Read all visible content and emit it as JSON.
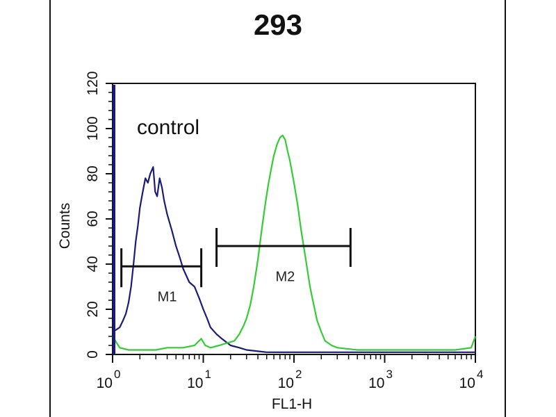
{
  "chart_data": {
    "type": "line",
    "title": "293",
    "xlabel": "FL1-H",
    "ylabel": "Counts",
    "x_scale": "log",
    "xlim": [
      1,
      10000
    ],
    "ylim": [
      0,
      120
    ],
    "x_ticks": [
      {
        "value": 1,
        "base": "10",
        "exp": "0"
      },
      {
        "value": 10,
        "base": "10",
        "exp": "1"
      },
      {
        "value": 100,
        "base": "10",
        "exp": "2"
      },
      {
        "value": 1000,
        "base": "10",
        "exp": "3"
      },
      {
        "value": 10000,
        "base": "10",
        "exp": "4"
      }
    ],
    "y_ticks": [
      "0",
      "20",
      "40",
      "60",
      "80",
      "100",
      "120"
    ],
    "grid": false,
    "annotation": "control",
    "series": [
      {
        "color": "#1a1a7a",
        "points": [
          [
            1,
            10
          ],
          [
            1.1,
            11
          ],
          [
            1.2,
            12
          ],
          [
            1.3,
            15
          ],
          [
            1.4,
            18
          ],
          [
            1.5,
            23
          ],
          [
            1.6,
            30
          ],
          [
            1.7,
            40
          ],
          [
            1.8,
            50
          ],
          [
            1.9,
            57
          ],
          [
            2.0,
            65
          ],
          [
            2.15,
            72
          ],
          [
            2.3,
            78
          ],
          [
            2.45,
            76
          ],
          [
            2.6,
            80
          ],
          [
            2.8,
            83
          ],
          [
            2.95,
            72
          ],
          [
            3.1,
            70
          ],
          [
            3.3,
            78
          ],
          [
            3.5,
            74
          ],
          [
            3.7,
            68
          ],
          [
            4,
            62
          ],
          [
            4.5,
            55
          ],
          [
            5,
            48
          ],
          [
            5.5,
            43
          ],
          [
            6,
            38
          ],
          [
            7,
            32
          ],
          [
            8,
            30
          ],
          [
            9,
            25
          ],
          [
            10,
            20
          ],
          [
            11,
            16
          ],
          [
            12,
            12
          ],
          [
            14,
            9
          ],
          [
            16,
            7
          ],
          [
            20,
            4
          ],
          [
            25,
            3
          ],
          [
            30,
            2
          ],
          [
            50,
            1
          ],
          [
            100,
            1
          ],
          [
            300,
            1
          ],
          [
            1000,
            1
          ],
          [
            3000,
            1
          ],
          [
            10000,
            1
          ]
        ]
      },
      {
        "color": "#33cc33",
        "points": [
          [
            1,
            8
          ],
          [
            1.2,
            3
          ],
          [
            1.5,
            2
          ],
          [
            2,
            2
          ],
          [
            3,
            2
          ],
          [
            4,
            3
          ],
          [
            6,
            3
          ],
          [
            8,
            4
          ],
          [
            9.5,
            7
          ],
          [
            10.5,
            4
          ],
          [
            12,
            3
          ],
          [
            15,
            4
          ],
          [
            18,
            5
          ],
          [
            22,
            6
          ],
          [
            25,
            9
          ],
          [
            28,
            13
          ],
          [
            30,
            16
          ],
          [
            33,
            22
          ],
          [
            36,
            30
          ],
          [
            40,
            42
          ],
          [
            44,
            55
          ],
          [
            48,
            66
          ],
          [
            52,
            75
          ],
          [
            56,
            82
          ],
          [
            60,
            88
          ],
          [
            65,
            93
          ],
          [
            70,
            96
          ],
          [
            75,
            97
          ],
          [
            80,
            95
          ],
          [
            85,
            90
          ],
          [
            90,
            86
          ],
          [
            100,
            76
          ],
          [
            110,
            66
          ],
          [
            120,
            55
          ],
          [
            135,
            42
          ],
          [
            150,
            30
          ],
          [
            165,
            22
          ],
          [
            180,
            15
          ],
          [
            200,
            10
          ],
          [
            220,
            6
          ],
          [
            260,
            4
          ],
          [
            300,
            3
          ],
          [
            500,
            2
          ],
          [
            1000,
            2
          ],
          [
            3000,
            2
          ],
          [
            6000,
            2
          ],
          [
            9000,
            3
          ],
          [
            10000,
            8
          ]
        ]
      }
    ],
    "markers": [
      {
        "label": "M1",
        "from": 1.25,
        "to": 9.5,
        "y": 39,
        "label_x": 4,
        "label_y": 26
      },
      {
        "label": "M2",
        "from": 14,
        "to": 420,
        "y": 48,
        "label_x": 80,
        "label_y": 35
      }
    ]
  }
}
